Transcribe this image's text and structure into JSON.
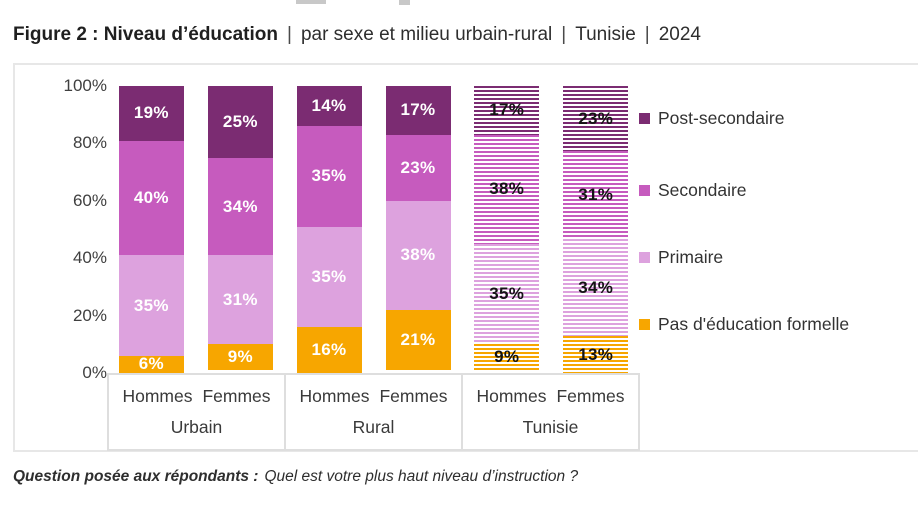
{
  "title": {
    "bold": "Figure 2 : Niveau d’éducation",
    "separator": "|",
    "parts": [
      "par sexe et milieu urbain-rural",
      "Tunisie",
      "2024"
    ]
  },
  "footnote": {
    "bold": "Question posée aux répondants :",
    "text": "Quel est votre plus haut niveau d’instruction ?"
  },
  "chart_data": {
    "type": "bar",
    "stacked": true,
    "unit": "%",
    "title": "Niveau d’éducation par sexe et milieu urbain-rural, Tunisie, 2024",
    "y_axis": {
      "ticks": [
        "100%",
        "80%",
        "60%",
        "40%",
        "20%",
        "0%"
      ],
      "min": 0,
      "max": 100,
      "grid": false
    },
    "legend_position": "right",
    "groups": [
      {
        "label": "Urbain",
        "hatched": false,
        "bar_labels": [
          "Hommes",
          "Femmes"
        ]
      },
      {
        "label": "Rural",
        "hatched": false,
        "bar_labels": [
          "Hommes",
          "Femmes"
        ]
      },
      {
        "label": "Tunisie",
        "hatched": true,
        "bar_labels": [
          "Hommes",
          "Femmes"
        ]
      }
    ],
    "categories": [
      "Urbain Hommes",
      "Urbain Femmes",
      "Rural Hommes",
      "Rural Femmes",
      "Tunisie Hommes",
      "Tunisie Femmes"
    ],
    "series": [
      {
        "name": "Post-secondaire",
        "color": "#7B2C72",
        "values": [
          19,
          25,
          14,
          17,
          17,
          23
        ]
      },
      {
        "name": "Secondaire",
        "color": "#C65BBE",
        "values": [
          40,
          34,
          35,
          23,
          38,
          31
        ]
      },
      {
        "name": "Primaire",
        "color": "#DDA2DE",
        "values": [
          35,
          31,
          35,
          38,
          35,
          34
        ]
      },
      {
        "name": "Pas d'éducation formelle",
        "color": "#F7A600",
        "values": [
          6,
          9,
          16,
          21,
          9,
          13
        ]
      }
    ],
    "data_label_colors": {
      "solid_bars": "#ffffff",
      "hatched_bars": "#141414"
    }
  }
}
